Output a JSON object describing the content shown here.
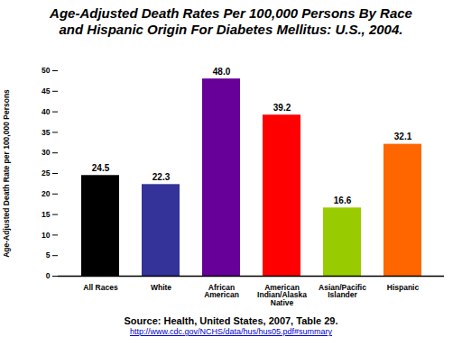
{
  "chart_data": {
    "type": "bar",
    "title": "Age-Adjusted Death Rates Per 100,000 Persons By Race and Hispanic Origin For Diabetes Mellitus: U.S., 2004.",
    "y_label": "Age-Adjusted Death Rate per 100,000 Persons",
    "categories": [
      "All Races",
      "White",
      "African American",
      "American Indian/Alaska Native",
      "Asian/Pacific Islander",
      "Hispanic"
    ],
    "values": [
      24.5,
      22.3,
      48.0,
      39.2,
      16.6,
      32.1
    ],
    "value_labels": [
      "24.5",
      "22.3",
      "48.0",
      "39.2",
      "16.6",
      "32.1"
    ],
    "colors": [
      "#000000",
      "#333399",
      "#660099",
      "#ff0000",
      "#99cc00",
      "#ff6600"
    ],
    "ylim": [
      0,
      50
    ],
    "yticks": [
      0,
      5,
      10,
      15,
      20,
      25,
      30,
      35,
      40,
      45,
      50
    ],
    "grid": false,
    "data_labels": true,
    "source": "Source: Health, United States, 2007, Table 29.",
    "source_url": "http://www.cdc.gov/NCHS/data/hus/hus05.pdf#summary"
  }
}
